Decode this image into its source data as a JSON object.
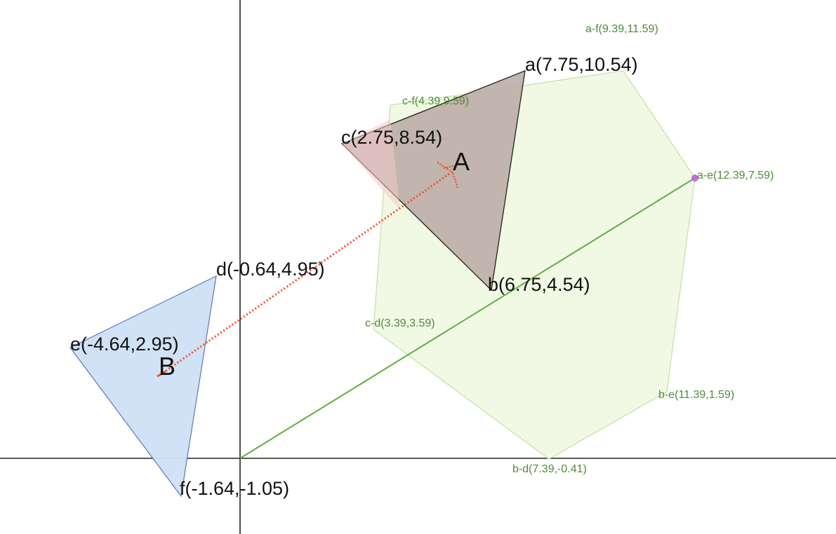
{
  "diagram": {
    "triangle_A": {
      "fill": "#b9a9a3",
      "points": [
        {
          "name": "a",
          "label": "a(7.75,10.54)"
        },
        {
          "name": "b",
          "label": "b(6.75,4.54)"
        },
        {
          "name": "c",
          "label": "c(2.75,8.54)"
        }
      ],
      "centroid_label": "A"
    },
    "triangle_B": {
      "fill": "#cfe0f6",
      "points": [
        {
          "name": "d",
          "label": "d(-0.64,4.95)"
        },
        {
          "name": "e",
          "label": "e(-4.64,2.95)"
        },
        {
          "name": "f",
          "label": "f(-1.64,-1.05)"
        }
      ],
      "centroid_label": "B"
    },
    "difference_polygon": {
      "fill": "#eef8e0",
      "stroke": "#bfe3a6",
      "vertices": [
        {
          "name": "a-f",
          "label": "a-f(9.39,11.59)"
        },
        {
          "name": "a-e",
          "label": "a-e(12.39,7.59)"
        },
        {
          "name": "b-e",
          "label": "b-e(11.39,1.59)"
        },
        {
          "name": "b-d",
          "label": "b-d(7.39,-0.41)"
        },
        {
          "name": "c-d",
          "label": "c-d(3.39,3.59)"
        },
        {
          "name": "c-f",
          "label": "c-f(4.39,9.59)"
        }
      ]
    },
    "vector_color": "#e8532a",
    "green_line_color": "#5fae3f",
    "accent_point_color": "#c36bd6"
  }
}
